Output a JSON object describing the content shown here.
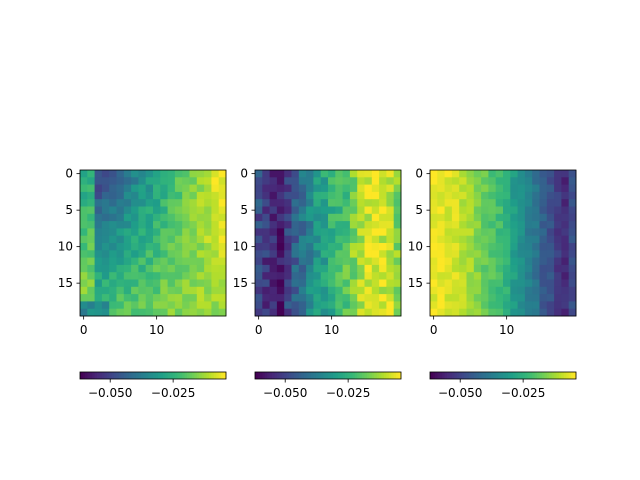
{
  "chart_data": [
    {
      "type": "heatmap",
      "title": "",
      "xlabel": "",
      "ylabel": "",
      "colormap": "viridis",
      "vmin": -0.062,
      "vmax": -0.004,
      "xlim": [
        -0.5,
        19.5
      ],
      "ylim": [
        19.5,
        -0.5
      ],
      "xticks": [
        "0",
        "10"
      ],
      "yticks": [
        "0",
        "5",
        "10",
        "15"
      ],
      "colorbar": {
        "orientation": "horizontal",
        "ticks": [
          "−0.050",
          "−0.025"
        ]
      },
      "field": {
        "corner_tl": -0.055,
        "corner_tr": -0.005,
        "corner_bl": -0.022,
        "corner_br": -0.012,
        "left_edge": -0.008,
        "bottom_rows": -0.035,
        "noise": 0.004
      },
      "values_note": "20x20 grid"
    },
    {
      "type": "heatmap",
      "title": "",
      "xlabel": "",
      "ylabel": "",
      "colormap": "viridis",
      "vmin": -0.062,
      "vmax": -0.004,
      "xlim": [
        -0.5,
        19.5
      ],
      "ylim": [
        19.5,
        -0.5
      ],
      "xticks": [
        "0",
        "10"
      ],
      "yticks": [
        "0",
        "5",
        "10",
        "15"
      ],
      "colorbar": {
        "orientation": "horizontal",
        "ticks": [
          "−0.050",
          "−0.025"
        ]
      },
      "column_profile": [
        -0.048,
        -0.052,
        -0.055,
        -0.058,
        -0.05,
        -0.045,
        -0.04,
        -0.035,
        -0.03,
        -0.028,
        -0.025,
        -0.022,
        -0.02,
        -0.015,
        -0.01,
        -0.008,
        -0.006,
        -0.008,
        -0.01,
        -0.015
      ],
      "noise": 0.006
    },
    {
      "type": "heatmap",
      "title": "",
      "xlabel": "",
      "ylabel": "",
      "colormap": "viridis",
      "vmin": -0.062,
      "vmax": -0.004,
      "xlim": [
        -0.5,
        19.5
      ],
      "ylim": [
        19.5,
        -0.5
      ],
      "xticks": [
        "0",
        "10"
      ],
      "yticks": [
        "0",
        "5",
        "10",
        "15"
      ],
      "colorbar": {
        "orientation": "horizontal",
        "ticks": [
          "−0.050",
          "−0.025"
        ]
      },
      "column_profile": [
        -0.006,
        -0.006,
        -0.007,
        -0.008,
        -0.01,
        -0.012,
        -0.015,
        -0.018,
        -0.02,
        -0.022,
        -0.025,
        -0.03,
        -0.033,
        -0.037,
        -0.04,
        -0.045,
        -0.048,
        -0.052,
        -0.055,
        -0.048
      ],
      "noise": 0.003
    }
  ]
}
